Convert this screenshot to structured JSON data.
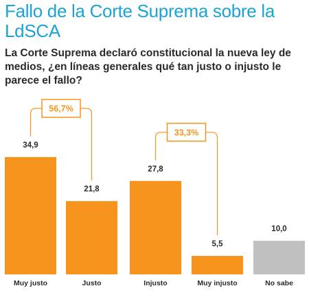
{
  "title": "Fallo de la Corte Suprema sobre la LdSCA",
  "subtitle": "La Corte Suprema declaró constitucional la nueva ley de medios, ¿en líneas generales qué tan justo o injusto le parece el fallo?",
  "colors": {
    "title": "#1aa3d6",
    "bar_primary": "#f7941d",
    "bar_neutral": "#c0c0c0",
    "bracket": "#f7941d",
    "text": "#2a2a2a"
  },
  "chart_data": {
    "type": "bar",
    "categories": [
      "Muy justo",
      "Justo",
      "Injusto",
      "Muy injusto",
      "No sabe"
    ],
    "values": [
      34.9,
      21.8,
      27.8,
      5.5,
      10.0
    ],
    "value_labels": [
      "34,9",
      "21,8",
      "27,8",
      "5,5",
      "10,0"
    ],
    "bar_colors": [
      "#f7941d",
      "#f7941d",
      "#f7941d",
      "#f7941d",
      "#c0c0c0"
    ],
    "groups": [
      {
        "label": "56,7%",
        "categories": [
          "Muy justo",
          "Justo"
        ]
      },
      {
        "label": "33,3%",
        "categories": [
          "Injusto",
          "Muy injusto"
        ]
      }
    ],
    "ylim": [
      0,
      40
    ],
    "grid": false,
    "legend": "none"
  }
}
